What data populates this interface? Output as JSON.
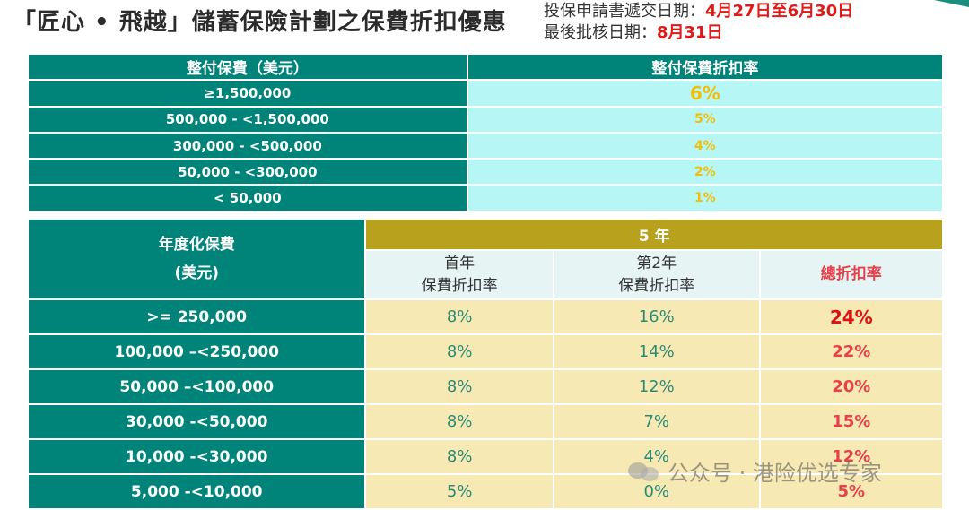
{
  "header": {
    "title": "「匠心 • 飛越」儲蓄保險計劃之保費折扣優惠",
    "submit_label": "投保申請書遞交日期：",
    "submit_value": "4月27日至6月30日",
    "approve_label": "最後批核日期：",
    "approve_value": "8月31日"
  },
  "single_table": {
    "col1": "整付保費（美元）",
    "col2": "整付保費折扣率",
    "rows": [
      {
        "range": "≥1,500,000",
        "rate": "6%"
      },
      {
        "range": "500,000 - <1,500,000",
        "rate": "5%"
      },
      {
        "range": "300,000 - <500,000",
        "rate": "4%"
      },
      {
        "range": "50,000 - <300,000",
        "rate": "2%"
      },
      {
        "range": "< 50,000",
        "rate": "1%"
      }
    ]
  },
  "annual_table": {
    "label_line1": "年度化保費",
    "label_line2": "(美元)",
    "group": "5 年",
    "col_first_l1": "首年",
    "col_first_l2": "保費折扣率",
    "col_second_l1": "第2年",
    "col_second_l2": "保費折扣率",
    "col_total": "總折扣率",
    "rows": [
      {
        "range": ">= 250,000",
        "first": "8%",
        "second": "16%",
        "total": "24%"
      },
      {
        "range": "100,000 –<250,000",
        "first": "8%",
        "second": "14%",
        "total": "22%"
      },
      {
        "range": "50,000 –<100,000",
        "first": "8%",
        "second": "12%",
        "total": "20%"
      },
      {
        "range": "30,000 -<50,000",
        "first": "8%",
        "second": "7%",
        "total": "15%"
      },
      {
        "range": "10,000 -<30,000",
        "first": "8%",
        "second": "4%",
        "total": "12%"
      },
      {
        "range": "5,000 -<10,000",
        "first": "5%",
        "second": "0%",
        "total": "5%"
      }
    ]
  },
  "watermark": {
    "text": "公众号 · 港险优选专家",
    "icon": "wechat-icon"
  }
}
